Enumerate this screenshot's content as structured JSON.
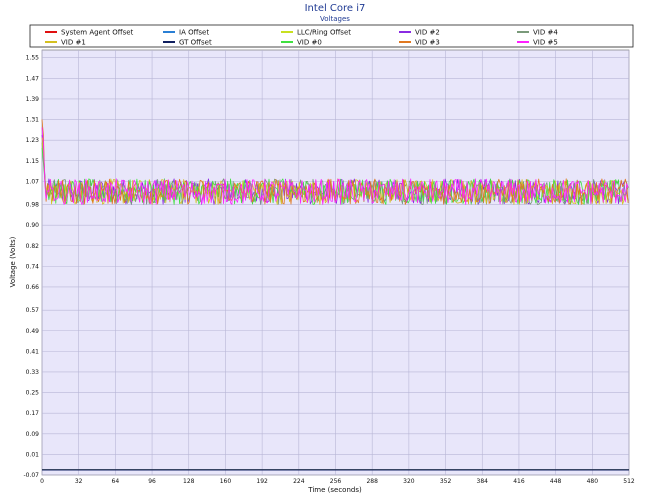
{
  "chart_data": {
    "type": "line",
    "title": "Intel Core i7",
    "subtitle": "Voltages",
    "xlabel": "Time (seconds)",
    "ylabel": "Voltage (Volts)",
    "xlim": [
      0,
      512
    ],
    "ylim": [
      -0.07,
      1.58
    ],
    "x_ticks": [
      0,
      32,
      64,
      96,
      128,
      160,
      192,
      224,
      256,
      288,
      320,
      352,
      384,
      416,
      448,
      480,
      512
    ],
    "y_ticks": [
      -0.07,
      0.01,
      0.09,
      0.17,
      0.25,
      0.33,
      0.41,
      0.49,
      0.57,
      0.66,
      0.74,
      0.82,
      0.9,
      0.98,
      1.07,
      1.15,
      1.23,
      1.31,
      1.39,
      1.47,
      1.55
    ],
    "grid": true,
    "legend_position": "top",
    "series": [
      {
        "name": "System Agent Offset",
        "color": "#e01010",
        "baseline": -0.05,
        "noise": 0
      },
      {
        "name": "IA Offset",
        "color": "#2a7fd4",
        "baseline": -0.05,
        "noise": 0
      },
      {
        "name": "LLC/Ring Offset",
        "color": "#c8e020",
        "baseline": -0.05,
        "noise": 0
      },
      {
        "name": "VID #2",
        "color": "#8a2be2",
        "baseline": 1.03,
        "noise": 0.05,
        "start_spike": 1.25
      },
      {
        "name": "VID #4",
        "color": "#7a9a7a",
        "baseline": 1.03,
        "noise": 0.05,
        "start_spike": 1.22
      },
      {
        "name": "VID #1",
        "color": "#d4c020",
        "baseline": 1.03,
        "noise": 0.05,
        "start_spike": 1.24
      },
      {
        "name": "GT Offset",
        "color": "#102060",
        "baseline": -0.05,
        "noise": 0
      },
      {
        "name": "VID #0",
        "color": "#40e040",
        "baseline": 1.03,
        "noise": 0.05,
        "start_spike": 1.2
      },
      {
        "name": "VID #3",
        "color": "#e07820",
        "baseline": 1.03,
        "noise": 0.05,
        "start_spike": 1.31
      },
      {
        "name": "VID #5",
        "color": "#ff20ff",
        "baseline": 1.03,
        "noise": 0.05,
        "start_spike": 1.28
      }
    ]
  }
}
